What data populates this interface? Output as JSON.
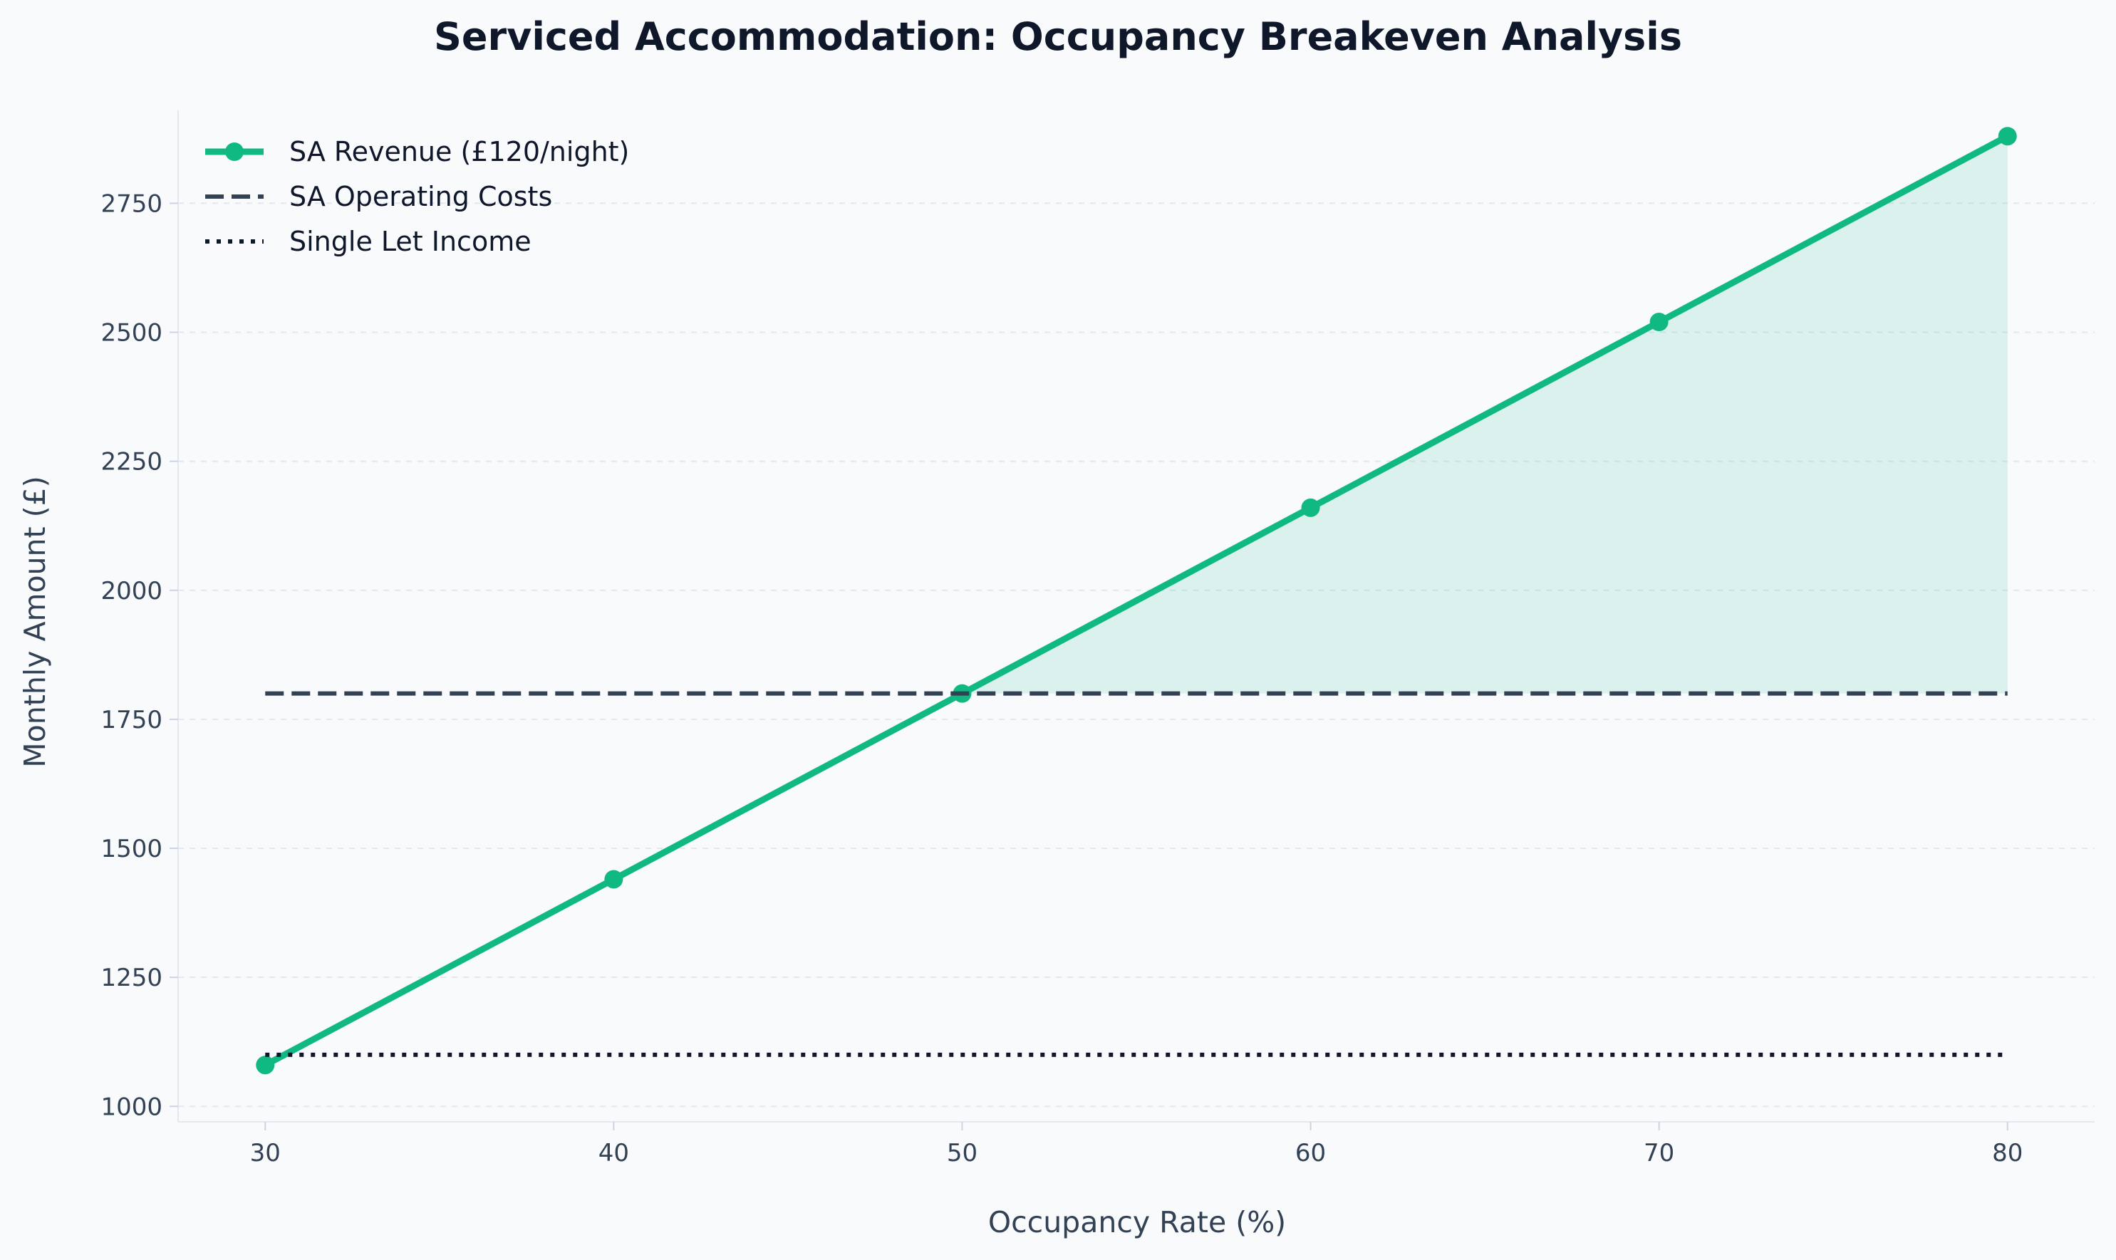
{
  "chart_data": {
    "type": "line",
    "title": "Serviced Accommodation: Occupancy Breakeven Analysis",
    "xlabel": "Occupancy Rate (%)",
    "ylabel": "Monthly Amount (£)",
    "x": [
      30,
      40,
      50,
      60,
      70,
      80
    ],
    "xticks": [
      "30",
      "40",
      "50",
      "60",
      "70",
      "80"
    ],
    "yticks": [
      "1000",
      "1250",
      "1500",
      "1750",
      "2000",
      "2250",
      "2500",
      "2750"
    ],
    "xlim": [
      27.5,
      82.5
    ],
    "ylim": [
      1000,
      2900
    ],
    "grid": "horizontal dashed",
    "legend_position": "top-left",
    "series": [
      {
        "name": "SA Revenue (£120/night)",
        "style": "solid-markers",
        "color": "#10b981",
        "values": [
          1080,
          1440,
          1800,
          2160,
          2520,
          2880
        ]
      },
      {
        "name": "SA Operating Costs",
        "style": "dashed",
        "color": "#334155",
        "values": [
          1800,
          1800,
          1800,
          1800,
          1800,
          1800
        ]
      },
      {
        "name": "Single Let Income",
        "style": "dotted",
        "color": "#0f172a",
        "values": [
          1100,
          1100,
          1100,
          1100,
          1100,
          1100
        ]
      }
    ],
    "profit_fill_color": "#10b981"
  }
}
